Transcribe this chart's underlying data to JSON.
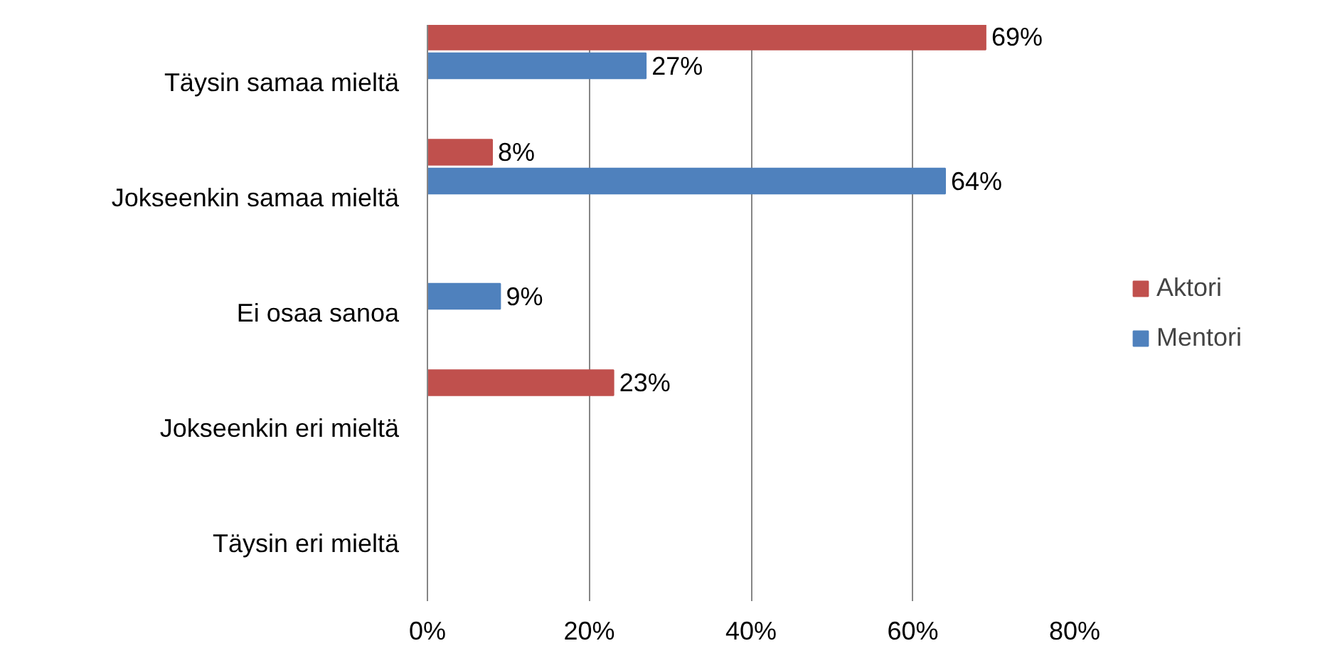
{
  "chart_data": {
    "type": "bar",
    "orientation": "horizontal",
    "categories": [
      "Täysin samaa mieltä",
      "Jokseenkin samaa mieltä",
      "Ei osaa sanoa",
      "Jokseenkin eri mieltä",
      "Täysin eri mieltä"
    ],
    "series": [
      {
        "name": "Aktori",
        "color": "#c0504d",
        "values": [
          69,
          8,
          null,
          23,
          null
        ],
        "value_labels": [
          "69%",
          "8%",
          null,
          "23%",
          null
        ]
      },
      {
        "name": "Mentori",
        "color": "#4f81bd",
        "values": [
          27,
          64,
          9,
          null,
          null
        ],
        "value_labels": [
          "27%",
          "64%",
          "9%",
          null,
          null
        ]
      }
    ],
    "xlim": [
      0,
      80
    ],
    "xticks": [
      {
        "value": 0,
        "label": "0%"
      },
      {
        "value": 20,
        "label": "20%"
      },
      {
        "value": 40,
        "label": "40%"
      },
      {
        "value": 60,
        "label": "60%"
      },
      {
        "value": 80,
        "label": "80%"
      }
    ],
    "grid": "x",
    "legend": "right"
  }
}
